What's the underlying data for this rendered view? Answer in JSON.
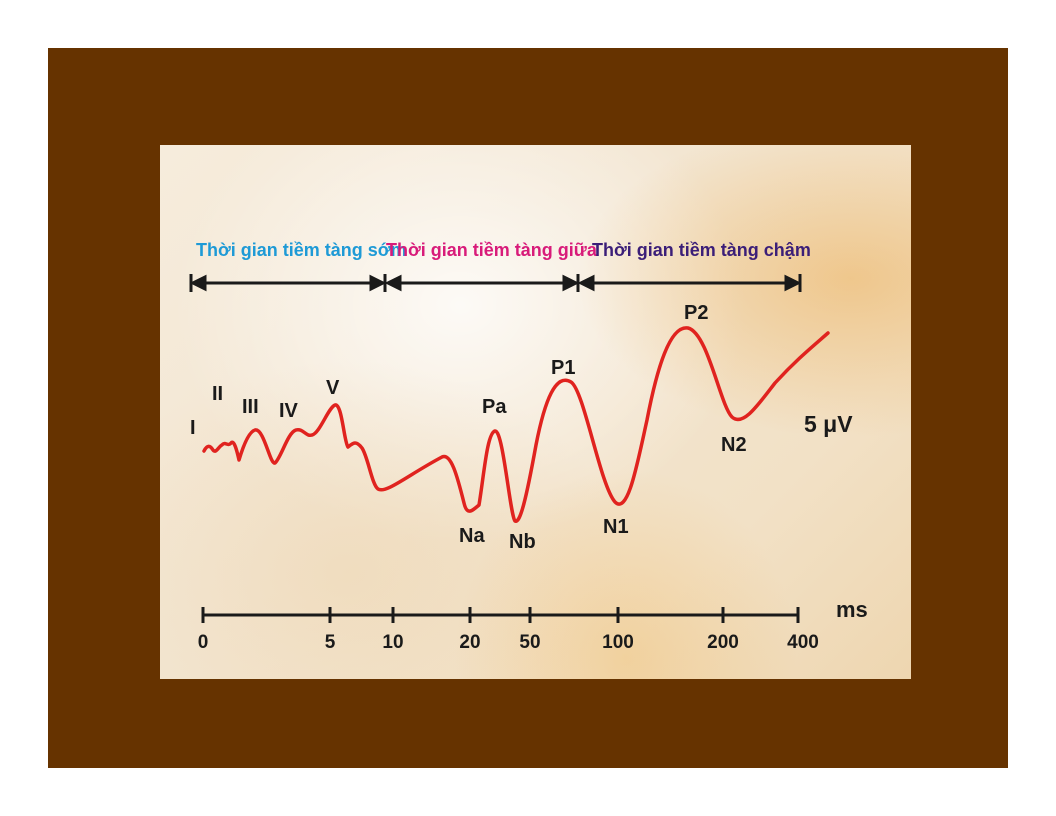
{
  "phases": {
    "early": {
      "label": "Thời gian tiềm tàng sớm",
      "color": "#1e9ad6"
    },
    "middle": {
      "label": "Thời gian tiềm tàng giữa",
      "color": "#d81b7a"
    },
    "late": {
      "label": "Thời gian tiềm tàng chậm",
      "color": "#3b1e78"
    }
  },
  "peaks": {
    "I": "I",
    "II": "II",
    "III": "III",
    "IV": "IV",
    "V": "V",
    "Na": "Na",
    "Pa": "Pa",
    "Nb": "Nb",
    "P1": "P1",
    "N1": "N1",
    "P2": "P2",
    "N2": "N2"
  },
  "scale": {
    "amplitude": "5 μV"
  },
  "axis": {
    "unit": "ms",
    "ticks": [
      "0",
      "5",
      "10",
      "20",
      "50",
      "100",
      "200",
      "400"
    ]
  },
  "colors": {
    "frame": "#663300",
    "waveform": "#e0231f",
    "arrows": "#1a1a1a"
  }
}
